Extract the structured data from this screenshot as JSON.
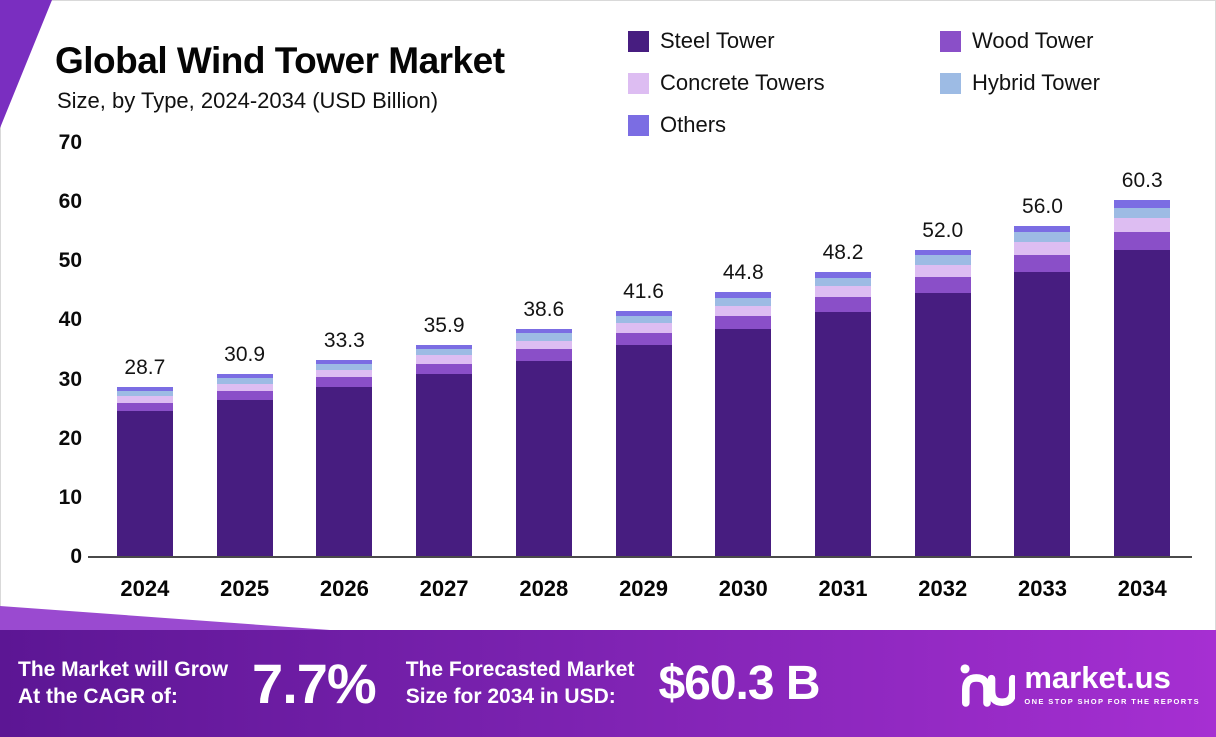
{
  "header": {
    "title": "Global Wind Tower Market",
    "subtitle": "Size, by Type, 2024-2034 (USD Billion)"
  },
  "chart_data": {
    "type": "bar",
    "stacked": true,
    "title": "Global Wind Tower Market Size, by Type, 2024-2034 (USD Billion)",
    "xlabel": "",
    "ylabel": "USD Billion",
    "ylim": [
      0,
      70
    ],
    "yticks": [
      0,
      10,
      20,
      30,
      40,
      50,
      60,
      70
    ],
    "grid": false,
    "legend_position": "top-right",
    "categories": [
      "2024",
      "2025",
      "2026",
      "2027",
      "2028",
      "2029",
      "2030",
      "2031",
      "2032",
      "2033",
      "2034"
    ],
    "totals": [
      28.7,
      30.9,
      33.3,
      35.9,
      38.6,
      41.6,
      44.8,
      48.2,
      52.0,
      56.0,
      60.3
    ],
    "series": [
      {
        "name": "Steel Tower",
        "color": "#471d80",
        "values": [
          24.7,
          26.6,
          28.7,
          30.9,
          33.2,
          35.8,
          38.5,
          41.5,
          44.7,
          48.2,
          51.9
        ]
      },
      {
        "name": "Wood Tower",
        "color": "#8a4fc8",
        "values": [
          1.4,
          1.5,
          1.7,
          1.8,
          1.9,
          2.1,
          2.2,
          2.4,
          2.6,
          2.8,
          3.0
        ]
      },
      {
        "name": "Concrete Towers",
        "color": "#ddbdf2",
        "values": [
          1.1,
          1.2,
          1.3,
          1.4,
          1.5,
          1.7,
          1.8,
          1.9,
          2.1,
          2.2,
          2.4
        ]
      },
      {
        "name": "Hybrid Tower",
        "color": "#9dbbe4",
        "values": [
          0.9,
          1.0,
          1.0,
          1.1,
          1.2,
          1.2,
          1.3,
          1.4,
          1.6,
          1.7,
          1.8
        ]
      },
      {
        "name": "Others",
        "color": "#7b6de3",
        "values": [
          0.6,
          0.6,
          0.6,
          0.7,
          0.8,
          0.8,
          1.0,
          1.0,
          1.0,
          1.1,
          1.2
        ]
      }
    ]
  },
  "banner": {
    "cagr_label_line1": "The Market will Grow",
    "cagr_label_line2": "At the CAGR of:",
    "cagr_value": "7.7%",
    "forecast_label_line1": "The Forecasted Market",
    "forecast_label_line2": "Size for 2034 in USD:",
    "forecast_value": "$60.3 B",
    "brand": "market.us",
    "brand_tagline": "ONE STOP SHOP FOR THE REPORTS"
  },
  "colors": {
    "banner_gradient_start": "#5c1694",
    "banner_gradient_end": "#a62fd2",
    "corner_accent": "#7a2ec0",
    "banner_accent": "#9a4ad0",
    "axis_line": "#4a4a4a"
  }
}
